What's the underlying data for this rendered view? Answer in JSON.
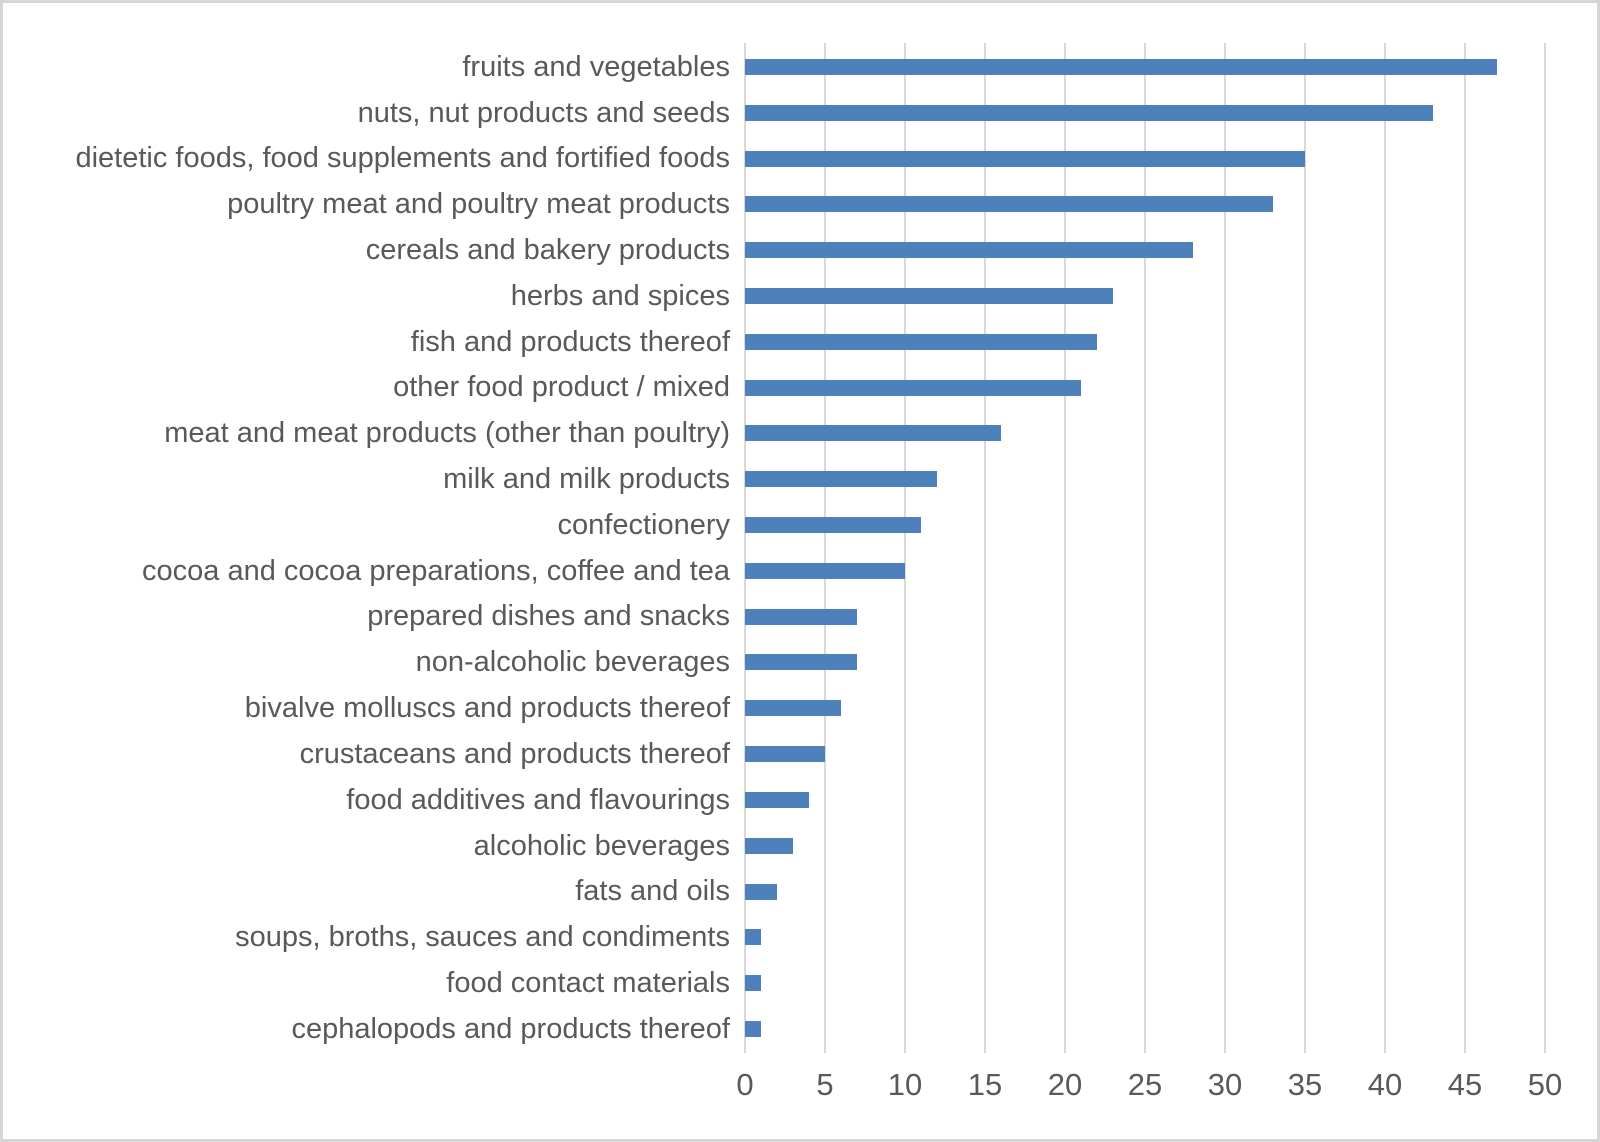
{
  "chart_data": {
    "type": "bar",
    "orientation": "horizontal",
    "title": "",
    "xlabel": "",
    "ylabel": "",
    "categories": [
      "fruits and vegetables",
      "nuts, nut products and seeds",
      "dietetic foods, food supplements and fortified foods",
      "poultry meat and poultry meat products",
      "cereals and bakery products",
      "herbs and spices",
      "fish and products thereof",
      "other food product / mixed",
      "meat and meat products (other than poultry)",
      "milk and milk products",
      "confectionery",
      "cocoa and cocoa preparations, coffee and tea",
      "prepared dishes and snacks",
      "non-alcoholic beverages",
      "bivalve molluscs and products thereof",
      "crustaceans and products thereof",
      "food additives and flavourings",
      "alcoholic beverages",
      "fats and oils",
      "soups, broths, sauces and condiments",
      "food contact materials",
      "cephalopods and products thereof"
    ],
    "values": [
      47,
      43,
      35,
      33,
      28,
      23,
      22,
      21,
      16,
      12,
      11,
      10,
      7,
      7,
      6,
      5,
      4,
      3,
      2,
      1,
      1,
      1
    ],
    "xlim": [
      0,
      50
    ],
    "x_ticks": [
      0,
      5,
      10,
      15,
      20,
      25,
      30,
      35,
      40,
      45,
      50
    ],
    "grid": true,
    "legend": false,
    "colors": {
      "bar": "#4e80bc",
      "gridline": "#d9d9d9",
      "text": "#595959",
      "background": "#ffffff",
      "frame_border": "#d6d6d6"
    }
  }
}
